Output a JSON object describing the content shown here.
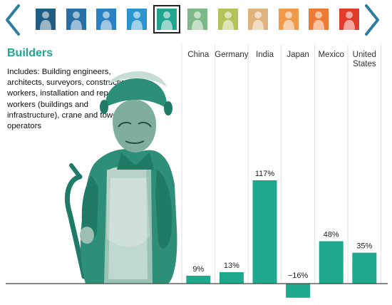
{
  "nav": {
    "prev_icon": "chevron-left-icon",
    "next_icon": "chevron-right-icon",
    "arrow_color": "#2c7da0"
  },
  "thumbnails": [
    {
      "icon": "worker-icon",
      "color": "#1f5d82",
      "selected": false
    },
    {
      "icon": "worker-icon",
      "color": "#2670a5",
      "selected": false
    },
    {
      "icon": "worker-icon",
      "color": "#2b82c0",
      "selected": false
    },
    {
      "icon": "worker-icon",
      "color": "#2c95cf",
      "selected": false
    },
    {
      "icon": "worker-icon",
      "color": "#22a58f",
      "selected": true
    },
    {
      "icon": "worker-icon",
      "color": "#7fb888",
      "selected": false
    },
    {
      "icon": "worker-icon",
      "color": "#b6c35a",
      "selected": false
    },
    {
      "icon": "worker-icon",
      "color": "#e0b27c",
      "selected": false
    },
    {
      "icon": "worker-icon",
      "color": "#f09a4c",
      "selected": false
    },
    {
      "icon": "worker-icon",
      "color": "#ef7a33",
      "selected": false
    },
    {
      "icon": "worker-icon",
      "color": "#e23b2a",
      "selected": false
    }
  ],
  "panel": {
    "title": "Builders",
    "description": "Includes: Building engineers, architects, surveyors, construction workers, installation and repair workers (buildings and infrastructure), crane and tower operators",
    "illustration": "welder-illustration",
    "accent_color": "#22a58f"
  },
  "chart_data": {
    "type": "bar",
    "categories": [
      "China",
      "Germany",
      "India",
      "Japan",
      "Mexico",
      "United States"
    ],
    "values": [
      9,
      13,
      117,
      -16,
      48,
      35
    ],
    "value_labels": [
      "9%",
      "13%",
      "117%",
      "−16%",
      "48%",
      "35%"
    ],
    "bar_color": "#1ea98c",
    "grid": "vertical separators",
    "legend": "none"
  }
}
